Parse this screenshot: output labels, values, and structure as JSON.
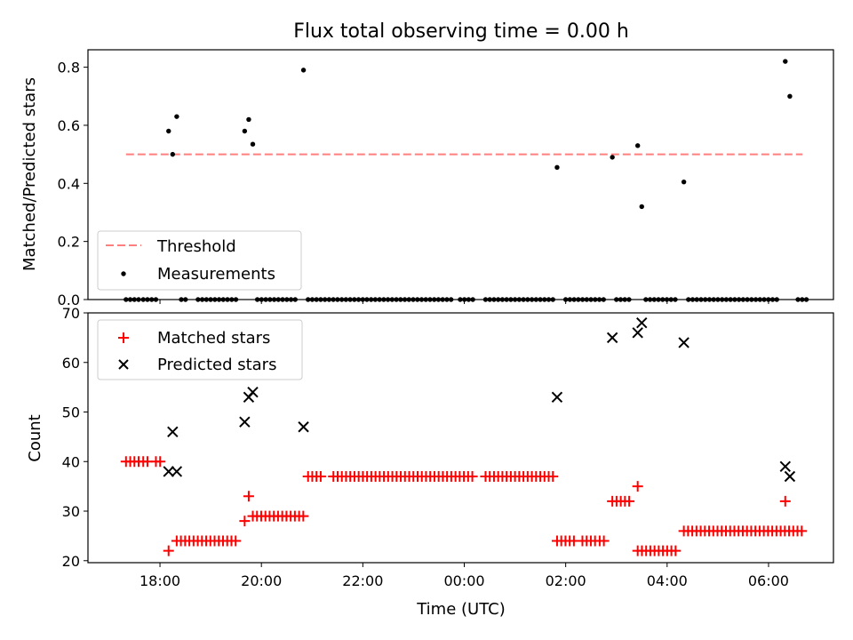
{
  "chart_data": [
    {
      "type": "scatter",
      "title": "Flux total observing time = 0.00 h",
      "xlabel": "",
      "ylabel": "Matched/Predicted stars",
      "xlim": [
        16.58,
        31.28
      ],
      "ylim": [
        0.0,
        0.86
      ],
      "x_ticks": [
        {
          "value": 18,
          "label": "18:00"
        },
        {
          "value": 20,
          "label": "20:00"
        },
        {
          "value": 22,
          "label": "22:00"
        },
        {
          "value": 24,
          "label": "00:00"
        },
        {
          "value": 26,
          "label": "02:00"
        },
        {
          "value": 28,
          "label": "04:00"
        },
        {
          "value": 30,
          "label": "06:00"
        }
      ],
      "y_ticks": [
        {
          "value": 0.0,
          "label": "0.0"
        },
        {
          "value": 0.2,
          "label": "0.2"
        },
        {
          "value": 0.4,
          "label": "0.4"
        },
        {
          "value": 0.6,
          "label": "0.6"
        },
        {
          "value": 0.8,
          "label": "0.8"
        }
      ],
      "legend_position": "lower-left",
      "threshold": {
        "name": "Threshold",
        "value": 0.5,
        "x_range": [
          17.33,
          30.67
        ],
        "color": "#ff7f7f"
      },
      "series": [
        {
          "name": "Measurements",
          "color": "#000000",
          "marker": "dot",
          "points": [
            [
              18.17,
              0.58
            ],
            [
              18.25,
              0.5
            ],
            [
              18.33,
              0.63
            ],
            [
              19.67,
              0.58
            ],
            [
              19.75,
              0.62
            ],
            [
              19.83,
              0.535
            ],
            [
              20.83,
              0.79
            ],
            [
              25.83,
              0.455
            ],
            [
              26.92,
              0.49
            ],
            [
              27.42,
              0.53
            ],
            [
              27.5,
              0.32
            ],
            [
              28.33,
              0.405
            ],
            [
              30.33,
              0.82
            ],
            [
              30.42,
              0.7
            ]
          ],
          "zero_intervals": [
            [
              17.33,
              17.58
            ],
            [
              17.67,
              18.0
            ],
            [
              18.42,
              18.58
            ],
            [
              18.75,
              19.5
            ],
            [
              19.92,
              20.67
            ],
            [
              20.92,
              22.0
            ],
            [
              22.08,
              23.75
            ],
            [
              23.92,
              24.17
            ],
            [
              24.42,
              25.75
            ],
            [
              26.0,
              26.75
            ],
            [
              27.0,
              27.33
            ],
            [
              27.58,
              28.17
            ],
            [
              28.42,
              30.17
            ],
            [
              30.58,
              30.75
            ]
          ]
        }
      ]
    },
    {
      "type": "scatter",
      "title": "",
      "xlabel": "Time (UTC)",
      "ylabel": "Count",
      "xlim": [
        16.58,
        31.28
      ],
      "ylim": [
        19.6,
        70.0
      ],
      "x_ticks": [
        {
          "value": 18,
          "label": "18:00"
        },
        {
          "value": 20,
          "label": "20:00"
        },
        {
          "value": 22,
          "label": "22:00"
        },
        {
          "value": 24,
          "label": "00:00"
        },
        {
          "value": 26,
          "label": "02:00"
        },
        {
          "value": 28,
          "label": "04:00"
        },
        {
          "value": 30,
          "label": "06:00"
        }
      ],
      "y_ticks": [
        {
          "value": 20,
          "label": "20"
        },
        {
          "value": 30,
          "label": "30"
        },
        {
          "value": 40,
          "label": "40"
        },
        {
          "value": 50,
          "label": "50"
        },
        {
          "value": 60,
          "label": "60"
        },
        {
          "value": 70,
          "label": "70"
        }
      ],
      "legend_position": "upper-left",
      "series": [
        {
          "name": "Matched stars",
          "color": "#ff0000",
          "marker": "plus",
          "groups": [
            {
              "value": 40,
              "x_range": [
                17.33,
                17.58
              ],
              "step": 0.083
            },
            {
              "value": 40,
              "x_range": [
                17.67,
                17.83
              ],
              "step": 0.083
            },
            {
              "value": 40,
              "x_range": [
                17.92,
                18.08
              ],
              "step": 0.083
            },
            {
              "value": 22,
              "x_range": [
                18.17,
                18.25
              ],
              "step": 0.083
            },
            {
              "value": 24,
              "x_range": [
                18.33,
                19.5
              ],
              "step": 0.083
            },
            {
              "value": 29,
              "x_range": [
                19.83,
                20.83
              ],
              "step": 0.083
            },
            {
              "value": 37,
              "x_range": [
                20.92,
                21.25
              ],
              "step": 0.083
            },
            {
              "value": 37,
              "x_range": [
                21.42,
                24.17
              ],
              "step": 0.083
            },
            {
              "value": 37,
              "x_range": [
                24.42,
                25.75
              ],
              "step": 0.083
            },
            {
              "value": 24,
              "x_range": [
                25.83,
                26.17
              ],
              "step": 0.083
            },
            {
              "value": 24,
              "x_range": [
                26.33,
                26.58
              ],
              "step": 0.083
            },
            {
              "value": 24,
              "x_range": [
                26.67,
                26.83
              ],
              "step": 0.083
            },
            {
              "value": 32,
              "x_range": [
                26.92,
                27.33
              ],
              "step": 0.083
            },
            {
              "value": 22,
              "x_range": [
                27.42,
                28.17
              ],
              "step": 0.083
            },
            {
              "value": 26,
              "x_range": [
                28.33,
                30.67
              ],
              "step": 0.083
            }
          ],
          "points": [
            [
              19.67,
              28
            ],
            [
              19.75,
              33
            ],
            [
              27.42,
              35
            ],
            [
              30.33,
              32
            ]
          ]
        },
        {
          "name": "Predicted stars",
          "color": "#000000",
          "marker": "x",
          "points": [
            [
              18.17,
              38
            ],
            [
              18.25,
              46
            ],
            [
              18.33,
              38
            ],
            [
              19.67,
              48
            ],
            [
              19.75,
              53
            ],
            [
              19.83,
              54
            ],
            [
              20.83,
              47
            ],
            [
              25.83,
              53
            ],
            [
              26.92,
              65
            ],
            [
              27.42,
              66
            ],
            [
              27.5,
              68
            ],
            [
              28.33,
              64
            ],
            [
              30.33,
              39
            ],
            [
              30.42,
              37
            ]
          ]
        }
      ]
    }
  ]
}
